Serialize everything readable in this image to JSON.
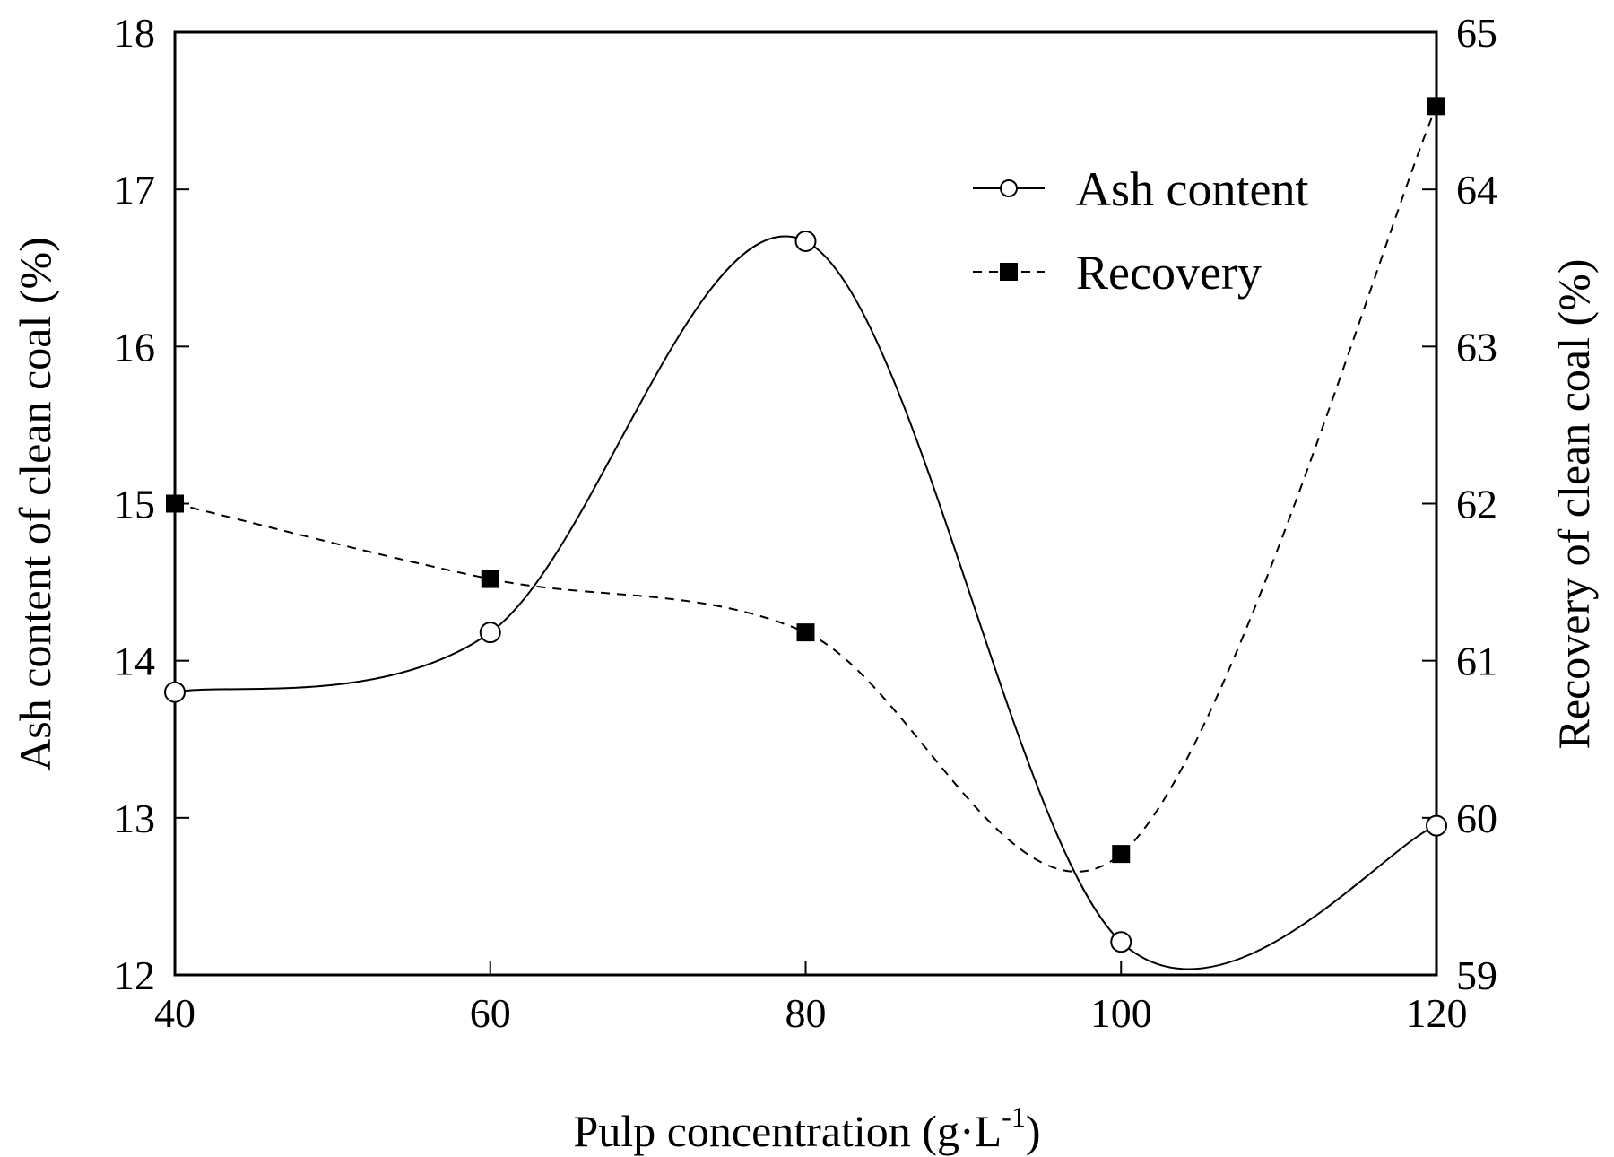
{
  "chart_data": {
    "type": "line",
    "title": "",
    "xlabel": "Pulp concentration (g·L",
    "xlabel_superscript": "-1",
    "xlabel_suffix": ")",
    "ylabel_left": "Ash content of clean coal (%)",
    "ylabel_right": "Recovery of clean coal (%)",
    "xlim": [
      40,
      120
    ],
    "ylim_left": [
      12,
      18
    ],
    "ylim_right": [
      59,
      65
    ],
    "x_ticks": [
      40,
      60,
      80,
      100,
      120
    ],
    "y_left_ticks": [
      12,
      13,
      14,
      15,
      16,
      17,
      18
    ],
    "y_right_ticks": [
      59,
      60,
      61,
      62,
      63,
      64,
      65
    ],
    "grid": false,
    "legend_position": "top-right",
    "series": [
      {
        "name": "Ash content",
        "axis": "left",
        "line_style": "solid",
        "marker": "open-circle",
        "color": "#000000",
        "x": [
          40,
          60,
          80,
          100,
          120
        ],
        "y": [
          13.8,
          14.18,
          16.67,
          12.21,
          12.95
        ]
      },
      {
        "name": "Recovery",
        "axis": "right",
        "line_style": "dashed",
        "marker": "filled-square",
        "color": "#000000",
        "x": [
          40,
          60,
          80,
          100,
          120
        ],
        "y": [
          62.0,
          61.52,
          61.18,
          59.77,
          64.53
        ]
      }
    ]
  }
}
